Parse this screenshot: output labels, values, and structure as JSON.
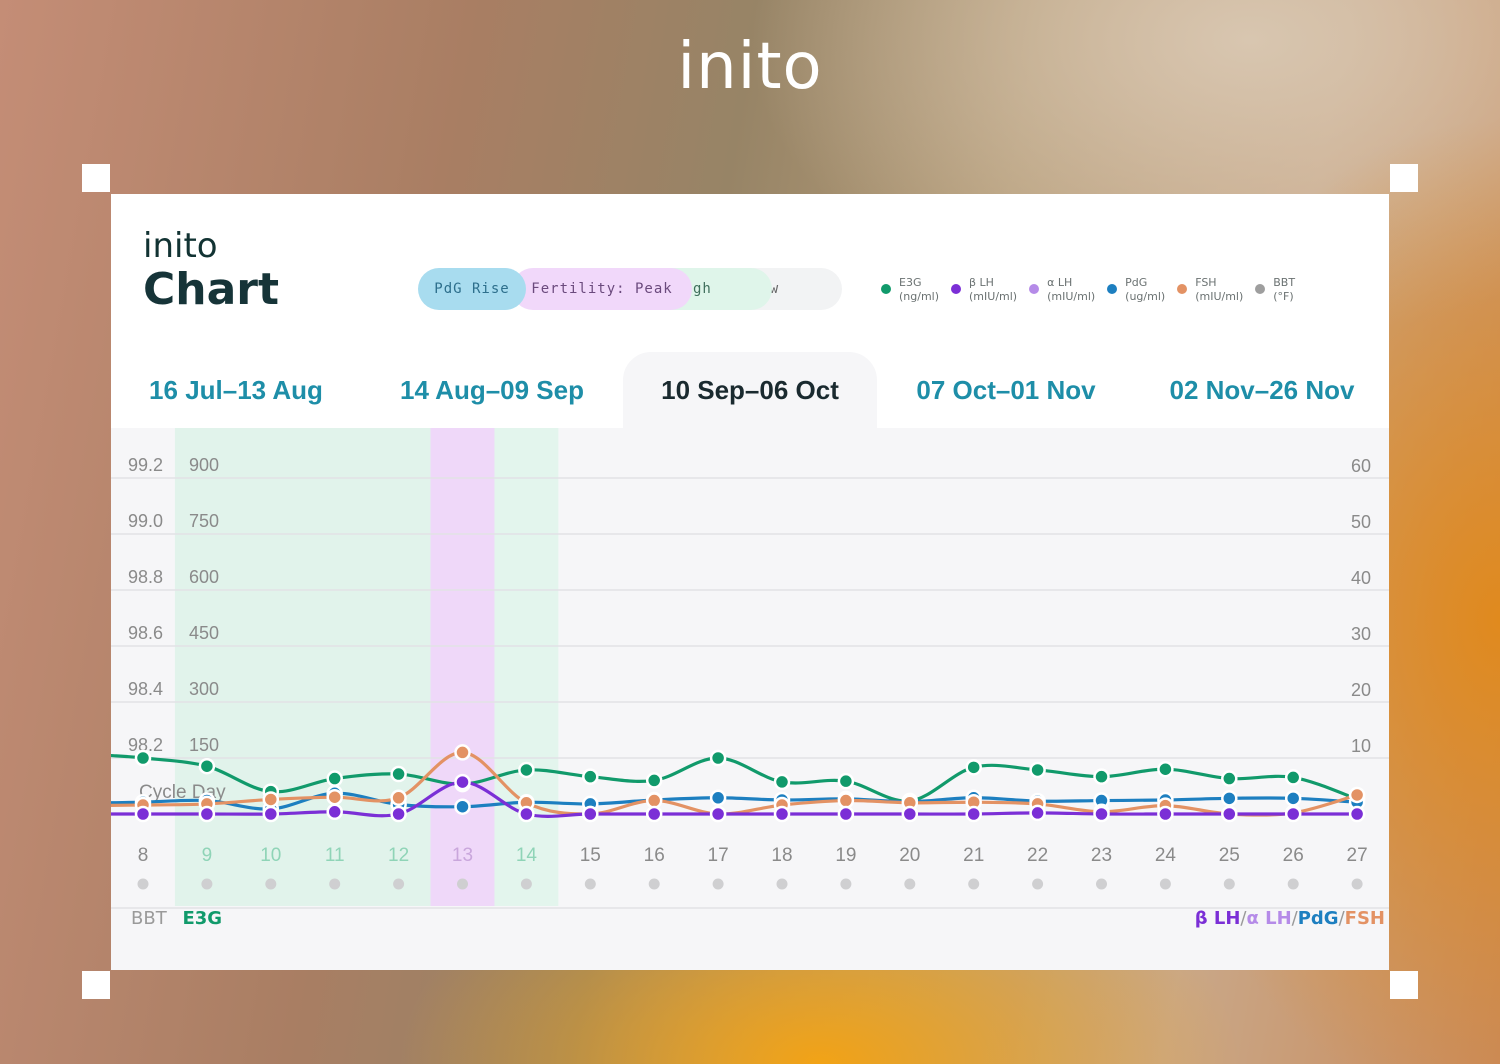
{
  "brand": "inito",
  "header": {
    "brand": "inito",
    "title": "Chart"
  },
  "phases": [
    "PdG Rise",
    "Fertility: Peak",
    "High",
    "Low"
  ],
  "legend": [
    {
      "label": "E3G\n(ng/ml)",
      "color": "#119a6b"
    },
    {
      "label": "β LH\n(mIU/ml)",
      "color": "#7b2fd6"
    },
    {
      "label": "α LH\n(mIU/ml)",
      "color": "#b58be8"
    },
    {
      "label": "PdG\n(ug/ml)",
      "color": "#1d7fc0"
    },
    {
      "label": "FSH\n(mIU/ml)",
      "color": "#e39264"
    },
    {
      "label": "BBT\n(°F)",
      "color": "#9e9e9e"
    }
  ],
  "tabs": [
    "16 Jul–13 Aug",
    "14 Aug–09 Sep",
    "10 Sep–06 Oct",
    "07 Oct–01 Nov",
    "02 Nov–26 Nov"
  ],
  "active_tab": 2,
  "footer": {
    "left_bbt": "BBT",
    "left_e3g": "E3G",
    "right_blh": "β LH",
    "right_alh": "α LH",
    "right_pdg": "PdG",
    "right_fsh": "FSH",
    "sep": "/"
  },
  "chart_data": {
    "type": "line",
    "xlabel": "Cycle Day",
    "x": [
      8,
      9,
      10,
      11,
      12,
      13,
      14,
      15,
      16,
      17,
      18,
      19,
      20,
      21,
      22,
      23,
      24,
      25,
      26,
      27
    ],
    "y_axis_bbt": {
      "label": "BBT",
      "ticks": [
        "99.2",
        "99.0",
        "98.8",
        "98.6",
        "98.4",
        "98.2"
      ],
      "range": [
        98.0,
        99.2
      ]
    },
    "y_axis_e3g": {
      "label": "E3G",
      "ticks": [
        "900",
        "750",
        "600",
        "450",
        "300",
        "150"
      ],
      "range": [
        0,
        900
      ]
    },
    "y_axis_right": {
      "label": "β LH/α LH/PdG/FSH",
      "ticks": [
        "60",
        "50",
        "40",
        "30",
        "20",
        "10"
      ],
      "range": [
        0,
        60
      ]
    },
    "grid": true,
    "shaded_days": {
      "high": [
        9,
        10,
        11,
        12
      ],
      "peak": [
        13
      ],
      "pdg_rise": [
        14
      ]
    },
    "series": [
      {
        "name": "E3G",
        "axis": "left",
        "color": "#119a6b",
        "values": [
          150,
          128,
          60,
          95,
          107,
          80,
          118,
          100,
          90,
          150,
          86,
          88,
          35,
          125,
          118,
          100,
          120,
          95,
          98,
          40
        ]
      },
      {
        "name": "PdG",
        "axis": "right",
        "color": "#1d7fc0",
        "values": [
          2.1,
          2.4,
          0.9,
          3.7,
          1.7,
          1.3,
          2.1,
          1.8,
          2.5,
          2.9,
          2.5,
          2.7,
          2.2,
          2.9,
          2.3,
          2.4,
          2.5,
          2.8,
          2.8,
          2.1
        ]
      },
      {
        "name": "FSH",
        "axis": "right",
        "color": "#e39264",
        "values": [
          1.6,
          1.8,
          2.6,
          3.0,
          2.9,
          11.0,
          2.0,
          0.0,
          2.4,
          0.0,
          1.6,
          2.4,
          2.0,
          2.1,
          1.8,
          0.4,
          1.5,
          0.0,
          0.2,
          3.4
        ]
      },
      {
        "name": "β LH",
        "axis": "right",
        "color": "#7b2fd6",
        "values": [
          0.0,
          0.0,
          0.0,
          0.4,
          0.0,
          5.7,
          0.0,
          0.0,
          0.0,
          0.0,
          0.0,
          0.0,
          0.0,
          0.0,
          0.2,
          0.0,
          0.0,
          0.0,
          0.0,
          0.0
        ]
      }
    ]
  }
}
